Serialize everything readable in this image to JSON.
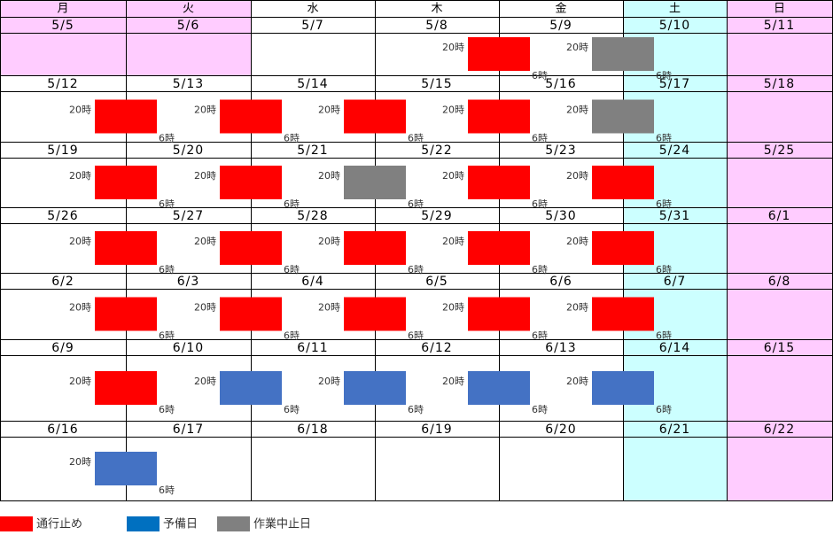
{
  "weekdays": [
    "月",
    "火",
    "水",
    "木",
    "金",
    "土",
    "日"
  ],
  "weeks": [
    {
      "cells": [
        {
          "date": "5/5",
          "holiday": true
        },
        {
          "date": "5/6",
          "holiday": true
        },
        {
          "date": "5/7"
        },
        {
          "date": "5/8",
          "event": {
            "type": "closure",
            "start": "20時",
            "end": "6時"
          }
        },
        {
          "date": "5/9",
          "event": {
            "type": "suspended",
            "start": "20時",
            "end": "6時"
          }
        },
        {
          "date": "5/10"
        },
        {
          "date": "5/11"
        }
      ]
    },
    {
      "cells": [
        {
          "date": "5/12",
          "event": {
            "type": "closure",
            "start": "20時",
            "end": "6時"
          }
        },
        {
          "date": "5/13",
          "event": {
            "type": "closure",
            "start": "20時",
            "end": "6時"
          }
        },
        {
          "date": "5/14",
          "event": {
            "type": "closure",
            "start": "20時",
            "end": "6時"
          }
        },
        {
          "date": "5/15",
          "event": {
            "type": "closure",
            "start": "20時",
            "end": "6時"
          }
        },
        {
          "date": "5/16",
          "event": {
            "type": "suspended",
            "start": "20時",
            "end": "6時"
          }
        },
        {
          "date": "5/17"
        },
        {
          "date": "5/18"
        }
      ]
    },
    {
      "cells": [
        {
          "date": "5/19",
          "event": {
            "type": "closure",
            "start": "20時",
            "end": "6時"
          }
        },
        {
          "date": "5/20",
          "event": {
            "type": "closure",
            "start": "20時",
            "end": "6時"
          }
        },
        {
          "date": "5/21",
          "event": {
            "type": "suspended",
            "start": "20時",
            "end": "6時"
          }
        },
        {
          "date": "5/22",
          "event": {
            "type": "closure",
            "start": "20時",
            "end": "6時"
          }
        },
        {
          "date": "5/23",
          "event": {
            "type": "closure",
            "start": "20時",
            "end": "6時"
          }
        },
        {
          "date": "5/24"
        },
        {
          "date": "5/25"
        }
      ]
    },
    {
      "cells": [
        {
          "date": "5/26",
          "event": {
            "type": "closure",
            "start": "20時",
            "end": "6時"
          }
        },
        {
          "date": "5/27",
          "event": {
            "type": "closure",
            "start": "20時",
            "end": "6時"
          }
        },
        {
          "date": "5/28",
          "event": {
            "type": "closure",
            "start": "20時",
            "end": "6時"
          }
        },
        {
          "date": "5/29",
          "event": {
            "type": "closure",
            "start": "20時",
            "end": "6時"
          }
        },
        {
          "date": "5/30",
          "event": {
            "type": "closure",
            "start": "20時",
            "end": "6時"
          }
        },
        {
          "date": "5/31"
        },
        {
          "date": "6/1"
        }
      ]
    },
    {
      "cells": [
        {
          "date": "6/2",
          "event": {
            "type": "closure",
            "start": "20時",
            "end": "6時"
          }
        },
        {
          "date": "6/3",
          "event": {
            "type": "closure",
            "start": "20時",
            "end": "6時"
          }
        },
        {
          "date": "6/4",
          "event": {
            "type": "closure",
            "start": "20時",
            "end": "6時"
          }
        },
        {
          "date": "6/5",
          "event": {
            "type": "closure",
            "start": "20時",
            "end": "6時"
          }
        },
        {
          "date": "6/6",
          "event": {
            "type": "closure",
            "start": "20時",
            "end": "6時"
          }
        },
        {
          "date": "6/7"
        },
        {
          "date": "6/8"
        }
      ]
    },
    {
      "cells": [
        {
          "date": "6/9",
          "event": {
            "type": "closure",
            "start": "20時",
            "end": "6時"
          }
        },
        {
          "date": "6/10",
          "event": {
            "type": "reserve",
            "start": "20時",
            "end": "6時"
          }
        },
        {
          "date": "6/11",
          "event": {
            "type": "reserve",
            "start": "20時",
            "end": "6時"
          }
        },
        {
          "date": "6/12",
          "event": {
            "type": "reserve",
            "start": "20時",
            "end": "6時"
          }
        },
        {
          "date": "6/13",
          "event": {
            "type": "reserve",
            "start": "20時",
            "end": "6時"
          }
        },
        {
          "date": "6/14"
        },
        {
          "date": "6/15"
        }
      ]
    },
    {
      "cells": [
        {
          "date": "6/16",
          "event": {
            "type": "reserve",
            "start": "20時",
            "end": "6時"
          }
        },
        {
          "date": "6/17"
        },
        {
          "date": "6/18"
        },
        {
          "date": "6/19"
        },
        {
          "date": "6/20"
        },
        {
          "date": "6/21"
        },
        {
          "date": "6/22"
        }
      ]
    }
  ],
  "legend": [
    {
      "type": "closure",
      "label": "通行止め",
      "color": "#ff0000",
      "bar_color": "#ff0000"
    },
    {
      "type": "reserve",
      "label": "予備日",
      "color": "#0070c0",
      "bar_color": "#4472c4"
    },
    {
      "type": "suspended",
      "label": "作業中止日",
      "color": "#808080",
      "bar_color": "#808080"
    }
  ]
}
